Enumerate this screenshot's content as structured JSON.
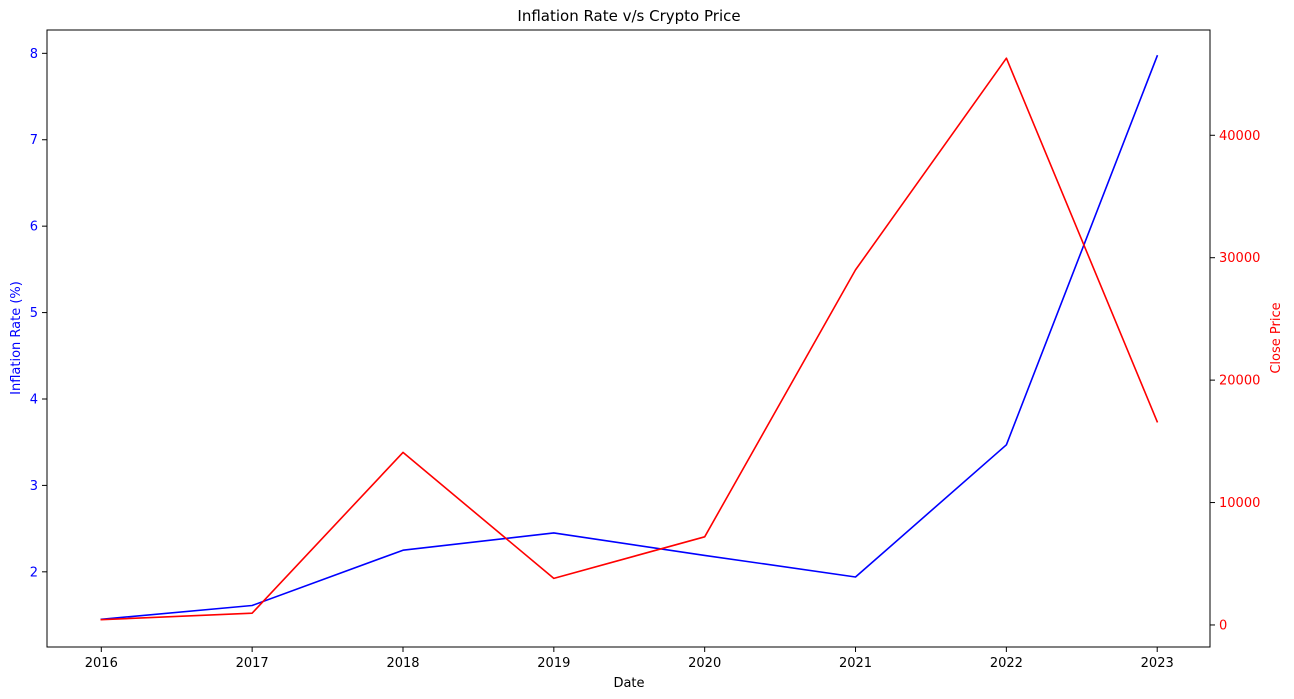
{
  "chart_data": {
    "type": "line",
    "title": "Inflation Rate v/s Crypto Price",
    "xlabel": "Date",
    "categories": [
      "2016",
      "2017",
      "2018",
      "2019",
      "2020",
      "2021",
      "2022",
      "2023"
    ],
    "xlim": [
      2015.64,
      2023.35
    ],
    "axes": {
      "left": {
        "ylabel": "Inflation Rate (%)",
        "color": "#0000ff",
        "ylim": [
          1.13,
          8.27
        ],
        "ticks": [
          2,
          3,
          4,
          5,
          6,
          7,
          8
        ],
        "tick_labels": [
          "2",
          "3",
          "4",
          "5",
          "6",
          "7",
          "8"
        ]
      },
      "right": {
        "ylabel": "Close Price",
        "color": "#ff0000",
        "ylim": [
          -1800,
          48600
        ],
        "ticks": [
          0,
          10000,
          20000,
          30000,
          40000
        ],
        "tick_labels": [
          "0",
          "10000",
          "20000",
          "30000",
          "40000"
        ]
      }
    },
    "series": [
      {
        "axis": "left",
        "color": "#0000ff",
        "x": [
          2016,
          2017,
          2018,
          2019,
          2020,
          2021,
          2022,
          2023
        ],
        "values": [
          1.45,
          1.61,
          2.25,
          2.45,
          2.19,
          1.94,
          3.47,
          7.97
        ]
      },
      {
        "axis": "right",
        "color": "#ff0000",
        "x": [
          2016,
          2017,
          2018,
          2019,
          2020,
          2021,
          2022,
          2023
        ],
        "values": [
          430,
          960,
          14100,
          3800,
          7200,
          29000,
          46300,
          16600
        ]
      }
    ],
    "grid": false,
    "legend": "none"
  }
}
